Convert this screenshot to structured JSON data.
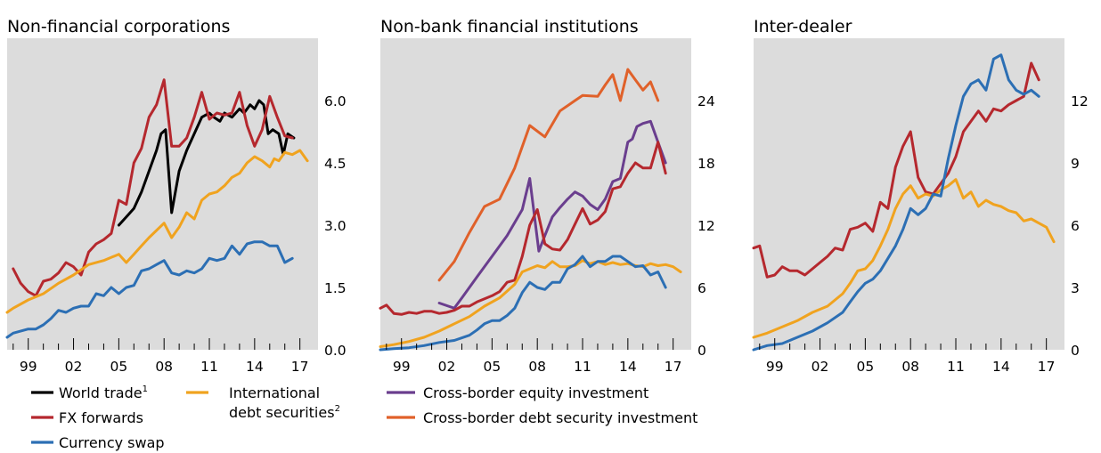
{
  "chart_data": [
    {
      "type": "line",
      "title": "Non-financial corporations",
      "x_tick_labels": [
        "99",
        "02",
        "05",
        "08",
        "11",
        "14",
        "17"
      ],
      "y_ticks": [
        "0.0",
        "1.5",
        "3.0",
        "4.5",
        "6.0"
      ],
      "ylim": [
        0,
        7.5
      ],
      "xlim": [
        1997.6,
        2018.2
      ],
      "grid": false,
      "series": [
        {
          "name": "World trade",
          "color": "#000000",
          "x": [
            2005.0,
            2005.5,
            2006.0,
            2006.5,
            2007.0,
            2007.5,
            2007.8,
            2008.1,
            2008.5,
            2009.0,
            2009.5,
            2010.0,
            2010.5,
            2011.0,
            2011.3,
            2011.7,
            2012.0,
            2012.5,
            2013.0,
            2013.3,
            2013.7,
            2014.0,
            2014.3,
            2014.6,
            2014.9,
            2015.2,
            2015.6,
            2015.9,
            2016.2,
            2016.6
          ],
          "y": [
            3.0,
            3.2,
            3.4,
            3.8,
            4.3,
            4.8,
            5.2,
            5.3,
            3.3,
            4.3,
            4.8,
            5.2,
            5.6,
            5.7,
            5.6,
            5.5,
            5.7,
            5.6,
            5.8,
            5.7,
            5.9,
            5.8,
            6.0,
            5.9,
            5.2,
            5.3,
            5.2,
            4.7,
            5.2,
            5.1
          ]
        },
        {
          "name": "FX forwards",
          "color": "#b5282e",
          "x": [
            1998.0,
            1998.5,
            1999.0,
            1999.5,
            2000.0,
            2000.5,
            2001.0,
            2001.5,
            2002.0,
            2002.5,
            2003.0,
            2003.5,
            2004.0,
            2004.5,
            2005.0,
            2005.5,
            2006.0,
            2006.5,
            2007.0,
            2007.5,
            2008.0,
            2008.5,
            2009.0,
            2009.5,
            2010.0,
            2010.5,
            2011.0,
            2011.5,
            2012.0,
            2012.5,
            2013.0,
            2013.5,
            2014.0,
            2014.5,
            2015.0,
            2015.5,
            2016.0,
            2016.5
          ],
          "y": [
            1.95,
            1.6,
            1.4,
            1.3,
            1.65,
            1.7,
            1.85,
            2.1,
            2.0,
            1.8,
            2.35,
            2.55,
            2.65,
            2.8,
            3.6,
            3.5,
            4.5,
            4.85,
            5.6,
            5.9,
            6.5,
            4.9,
            4.9,
            5.1,
            5.6,
            6.2,
            5.55,
            5.7,
            5.65,
            5.7,
            6.2,
            5.4,
            4.9,
            5.3,
            6.1,
            5.6,
            5.15,
            5.1
          ]
        },
        {
          "name": "International debt securities",
          "color": "#f0a31f",
          "x": [
            1997.6,
            1998.0,
            1999.0,
            2000.0,
            2001.0,
            2002.0,
            2003.0,
            2004.0,
            2005.0,
            2005.5,
            2006.0,
            2006.5,
            2007.0,
            2008.0,
            2008.5,
            2009.0,
            2009.5,
            2010.0,
            2010.5,
            2011.0,
            2011.5,
            2012.0,
            2012.5,
            2013.0,
            2013.5,
            2014.0,
            2014.5,
            2015.0,
            2015.3,
            2015.6,
            2016.0,
            2016.5,
            2017.0,
            2017.5
          ],
          "y": [
            0.9,
            1.0,
            1.2,
            1.35,
            1.6,
            1.8,
            2.05,
            2.15,
            2.3,
            2.1,
            2.3,
            2.5,
            2.7,
            3.05,
            2.7,
            2.95,
            3.3,
            3.15,
            3.6,
            3.75,
            3.8,
            3.95,
            4.15,
            4.25,
            4.5,
            4.65,
            4.55,
            4.4,
            4.6,
            4.55,
            4.75,
            4.7,
            4.8,
            4.55
          ]
        },
        {
          "name": "Currency swap",
          "color": "#2c6fb4",
          "x": [
            1997.6,
            1998.0,
            1999.0,
            1999.5,
            2000.0,
            2000.5,
            2001.0,
            2001.5,
            2002.0,
            2002.5,
            2003.0,
            2003.5,
            2004.0,
            2004.5,
            2005.0,
            2005.5,
            2006.0,
            2006.5,
            2007.0,
            2007.5,
            2008.0,
            2008.5,
            2009.0,
            2009.5,
            2010.0,
            2010.5,
            2011.0,
            2011.5,
            2012.0,
            2012.5,
            2013.0,
            2013.5,
            2014.0,
            2014.5,
            2015.0,
            2015.5,
            2016.0,
            2016.5
          ],
          "y": [
            0.3,
            0.4,
            0.5,
            0.5,
            0.6,
            0.75,
            0.95,
            0.9,
            1.0,
            1.05,
            1.05,
            1.35,
            1.3,
            1.5,
            1.35,
            1.5,
            1.55,
            1.9,
            1.95,
            2.05,
            2.15,
            1.85,
            1.8,
            1.9,
            1.85,
            1.95,
            2.2,
            2.15,
            2.2,
            2.5,
            2.3,
            2.55,
            2.6,
            2.6,
            2.5,
            2.5,
            2.1,
            2.2
          ]
        }
      ]
    },
    {
      "type": "line",
      "title": "Non-bank financial institutions",
      "x_tick_labels": [
        "99",
        "02",
        "05",
        "08",
        "11",
        "14",
        "17"
      ],
      "y_ticks": [
        "0",
        "6",
        "12",
        "18",
        "24"
      ],
      "ylim": [
        0,
        30
      ],
      "xlim": [
        1997.6,
        2018.2
      ],
      "grid": false,
      "series": [
        {
          "name": "Cross-border equity investment",
          "color": "#6a3e8e",
          "x": [
            2001.5,
            2002.5,
            2003.0,
            2004.0,
            2005.0,
            2006.0,
            2007.0,
            2007.5,
            2008.1,
            2008.5,
            2009.0,
            2009.5,
            2010.0,
            2010.5,
            2011.0,
            2011.5,
            2012.0,
            2012.5,
            2013.0,
            2013.5,
            2014.0,
            2014.3,
            2014.6,
            2015.0,
            2015.5,
            2016.0,
            2016.5
          ],
          "y": [
            4.5,
            4.0,
            5.0,
            7.0,
            9.0,
            11.0,
            13.5,
            16.5,
            9.5,
            11.0,
            12.8,
            13.7,
            14.5,
            15.2,
            14.8,
            14.0,
            13.5,
            14.5,
            16.2,
            16.5,
            20.0,
            20.3,
            21.5,
            21.8,
            22.0,
            20.0,
            18.0
          ]
        },
        {
          "name": "Cross-border debt security investment",
          "color": "#e0612a",
          "x": [
            2001.5,
            2002.5,
            2003.5,
            2004.5,
            2005.5,
            2006.5,
            2007.5,
            2008.5,
            2009.5,
            2010.5,
            2011.0,
            2012.0,
            2012.5,
            2013.0,
            2013.5,
            2014.0,
            2014.5,
            2015.0,
            2015.5,
            2016.0
          ],
          "y": [
            6.7,
            8.5,
            11.3,
            13.8,
            14.5,
            17.5,
            21.6,
            20.5,
            23.0,
            24.0,
            24.5,
            24.4,
            25.5,
            26.5,
            24.0,
            27.0,
            26.0,
            25.0,
            25.8,
            24.0
          ]
        },
        {
          "name": "FX forwards",
          "color": "#b5282e",
          "x": [
            1997.6,
            1998.0,
            1998.5,
            1999.0,
            1999.5,
            2000.0,
            2000.5,
            2001.0,
            2001.5,
            2002.0,
            2002.5,
            2003.0,
            2003.5,
            2004.0,
            2004.5,
            2005.0,
            2005.5,
            2006.0,
            2006.5,
            2007.0,
            2007.5,
            2008.0,
            2008.5,
            2009.0,
            2009.5,
            2010.0,
            2010.5,
            2011.0,
            2011.5,
            2012.0,
            2012.5,
            2013.0,
            2013.5,
            2014.0,
            2014.5,
            2015.0,
            2015.5,
            2016.0,
            2016.5
          ],
          "y": [
            4.0,
            4.3,
            3.5,
            3.4,
            3.6,
            3.5,
            3.7,
            3.7,
            3.5,
            3.6,
            3.8,
            4.2,
            4.2,
            4.6,
            4.9,
            5.2,
            5.6,
            6.5,
            6.7,
            9.0,
            12.0,
            13.5,
            10.2,
            9.7,
            9.6,
            10.6,
            12.1,
            13.6,
            12.1,
            12.5,
            13.3,
            15.5,
            15.7,
            17.0,
            18.0,
            17.5,
            17.5,
            20.0,
            17.0
          ]
        },
        {
          "name": "International debt securities",
          "color": "#f0a31f",
          "x": [
            1997.6,
            1998.5,
            1999.5,
            2000.5,
            2001.5,
            2002.5,
            2003.5,
            2004.5,
            2005.5,
            2006.5,
            2007.0,
            2007.5,
            2008.0,
            2008.5,
            2009.0,
            2009.5,
            2010.0,
            2010.5,
            2011.0,
            2011.5,
            2012.0,
            2012.5,
            2013.0,
            2013.5,
            2014.0,
            2014.5,
            2015.0,
            2015.5,
            2016.0,
            2016.5,
            2017.0,
            2017.5
          ],
          "y": [
            0.3,
            0.5,
            0.8,
            1.2,
            1.8,
            2.5,
            3.2,
            4.2,
            5.0,
            6.3,
            7.5,
            7.8,
            8.1,
            7.9,
            8.5,
            8.0,
            8.0,
            8.1,
            8.6,
            8.3,
            8.5,
            8.2,
            8.4,
            8.2,
            8.3,
            8.1,
            8.0,
            8.3,
            8.1,
            8.2,
            8.0,
            7.5
          ]
        },
        {
          "name": "Currency swap",
          "color": "#2c6fb4",
          "x": [
            1997.6,
            1998.5,
            1999.5,
            2000.5,
            2001.5,
            2002.5,
            2003.5,
            2004.0,
            2004.5,
            2005.0,
            2005.5,
            2006.0,
            2006.5,
            2007.0,
            2007.5,
            2008.0,
            2008.5,
            2009.0,
            2009.5,
            2010.0,
            2010.5,
            2011.0,
            2011.5,
            2012.0,
            2012.5,
            2013.0,
            2013.5,
            2014.0,
            2014.5,
            2015.0,
            2015.5,
            2016.0,
            2016.5
          ],
          "y": [
            0.0,
            0.1,
            0.2,
            0.4,
            0.7,
            0.9,
            1.4,
            1.9,
            2.5,
            2.8,
            2.8,
            3.3,
            4.0,
            5.5,
            6.5,
            6.0,
            5.8,
            6.5,
            6.5,
            7.8,
            8.2,
            9.0,
            8.0,
            8.5,
            8.5,
            9.0,
            9.0,
            8.5,
            8.0,
            8.1,
            7.2,
            7.5,
            6.0
          ]
        }
      ]
    },
    {
      "type": "line",
      "title": "Inter-dealer",
      "x_tick_labels": [
        "99",
        "02",
        "05",
        "08",
        "11",
        "14",
        "17"
      ],
      "y_ticks": [
        "0",
        "3",
        "6",
        "9",
        "12"
      ],
      "ylim": [
        0,
        15
      ],
      "xlim": [
        1997.6,
        2018.2
      ],
      "grid": false,
      "series": [
        {
          "name": "FX forwards",
          "color": "#b5282e",
          "x": [
            1997.6,
            1998.0,
            1998.5,
            1999.0,
            1999.5,
            2000.0,
            2000.5,
            2001.0,
            2001.5,
            2002.0,
            2002.5,
            2003.0,
            2003.5,
            2004.0,
            2004.5,
            2005.0,
            2005.5,
            2006.0,
            2006.5,
            2007.0,
            2007.5,
            2008.0,
            2008.5,
            2009.0,
            2009.5,
            2010.0,
            2010.5,
            2011.0,
            2011.5,
            2012.0,
            2012.5,
            2013.0,
            2013.5,
            2014.0,
            2014.5,
            2015.0,
            2015.5,
            2016.0,
            2016.5
          ],
          "y": [
            4.9,
            5.0,
            3.5,
            3.6,
            4.0,
            3.8,
            3.8,
            3.6,
            3.9,
            4.2,
            4.5,
            4.9,
            4.8,
            5.8,
            5.9,
            6.1,
            5.7,
            7.1,
            6.8,
            8.8,
            9.8,
            10.5,
            8.3,
            7.6,
            7.5,
            8.0,
            8.5,
            9.3,
            10.5,
            11.0,
            11.5,
            11.0,
            11.6,
            11.5,
            11.8,
            12.0,
            12.2,
            13.8,
            13.0
          ]
        },
        {
          "name": "International debt securities",
          "color": "#f0a31f",
          "x": [
            1997.6,
            1998.5,
            1999.5,
            2000.5,
            2001.5,
            2002.5,
            2003.5,
            2004.0,
            2004.5,
            2005.0,
            2005.5,
            2006.0,
            2006.5,
            2007.0,
            2007.5,
            2008.0,
            2008.5,
            2009.0,
            2009.5,
            2010.0,
            2010.5,
            2011.0,
            2011.5,
            2012.0,
            2012.5,
            2013.0,
            2013.5,
            2014.0,
            2014.5,
            2015.0,
            2015.5,
            2016.0,
            2016.5,
            2017.0,
            2017.5
          ],
          "y": [
            0.6,
            0.8,
            1.1,
            1.4,
            1.8,
            2.1,
            2.7,
            3.2,
            3.8,
            3.9,
            4.3,
            5.0,
            5.8,
            6.8,
            7.5,
            7.9,
            7.3,
            7.5,
            7.4,
            7.7,
            7.9,
            8.2,
            7.3,
            7.6,
            6.9,
            7.2,
            7.0,
            6.9,
            6.7,
            6.6,
            6.2,
            6.3,
            6.1,
            5.9,
            5.2
          ]
        },
        {
          "name": "Currency swap",
          "color": "#2c6fb4",
          "x": [
            1997.6,
            1998.5,
            1999.5,
            2000.5,
            2001.5,
            2002.5,
            2003.5,
            2004.0,
            2004.5,
            2005.0,
            2005.5,
            2006.0,
            2006.5,
            2007.0,
            2007.5,
            2008.0,
            2008.5,
            2009.0,
            2009.5,
            2010.0,
            2010.5,
            2011.0,
            2011.5,
            2012.0,
            2012.5,
            2013.0,
            2013.5,
            2014.0,
            2014.5,
            2015.0,
            2015.5,
            2016.0,
            2016.5
          ],
          "y": [
            0.0,
            0.2,
            0.3,
            0.6,
            0.9,
            1.3,
            1.8,
            2.3,
            2.8,
            3.2,
            3.4,
            3.8,
            4.4,
            5.0,
            5.8,
            6.8,
            6.5,
            6.8,
            7.5,
            7.4,
            9.2,
            10.8,
            12.2,
            12.8,
            13.0,
            12.5,
            14.0,
            14.2,
            13.0,
            12.5,
            12.3,
            12.5,
            12.2
          ]
        }
      ]
    }
  ],
  "legend": {
    "world_trade": "World trade",
    "world_trade_sup": "1",
    "fx_forwards": "FX forwards",
    "currency_swap": "Currency swap",
    "intl_debt_line1": "International",
    "intl_debt_line2": "debt securities",
    "intl_debt_sup": "2",
    "equity": "Cross-border equity investment",
    "debt": "Cross-border debt security investment"
  },
  "colors": {
    "plot_bg": "#dcdcdc",
    "world_trade": "#000000",
    "fx_forwards": "#b5282e",
    "intl_debt": "#f0a31f",
    "currency_swap": "#2c6fb4",
    "equity": "#6a3e8e",
    "debt": "#e0612a"
  }
}
